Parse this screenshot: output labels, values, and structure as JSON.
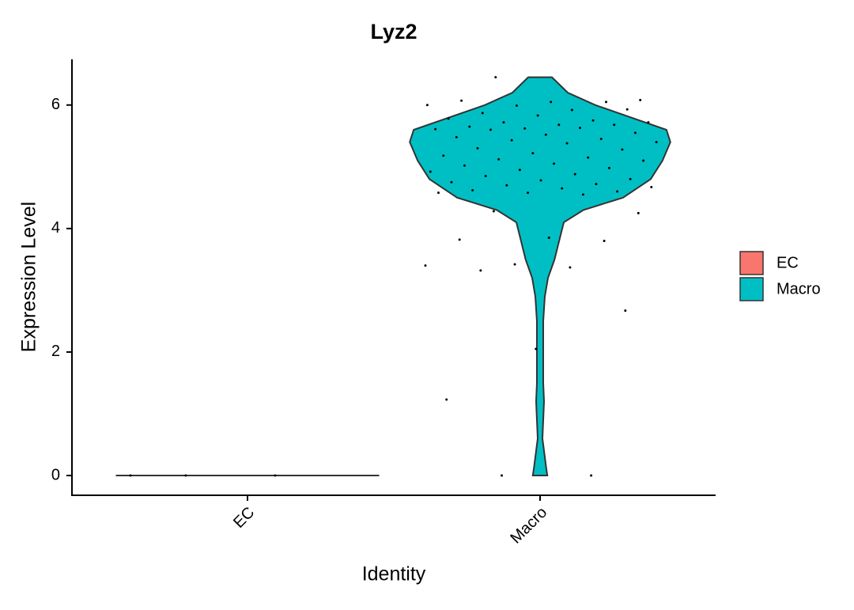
{
  "chart_data": {
    "type": "violin",
    "title": "Lyz2",
    "x_label": "Identity",
    "y_label": "Expression Level",
    "categories": [
      "EC",
      "Macro"
    ],
    "series": [
      {
        "name": "EC",
        "color": "#F8766D",
        "values": [
          0,
          0,
          0
        ],
        "density": {
          "y": [
            0
          ],
          "width": [
            1
          ]
        }
      },
      {
        "name": "Macro",
        "color": "#00BFC4",
        "values": [
          6.45,
          6.08,
          6.05,
          6.07,
          6.05,
          5.99,
          6.0,
          5.92,
          5.87,
          5.93,
          5.83,
          5.78,
          5.75,
          5.72,
          5.72,
          5.68,
          5.65,
          5.68,
          5.62,
          5.61,
          5.63,
          5.6,
          5.55,
          5.52,
          5.48,
          5.45,
          5.43,
          5.4,
          5.38,
          5.3,
          5.28,
          5.22,
          5.18,
          5.15,
          5.12,
          5.1,
          5.05,
          5.02,
          4.98,
          4.95,
          4.92,
          4.88,
          4.85,
          4.8,
          4.78,
          4.75,
          4.72,
          4.7,
          4.67,
          4.65,
          4.62,
          4.6,
          4.58,
          4.58,
          4.55,
          4.28,
          4.25,
          3.85,
          3.82,
          3.8,
          3.42,
          3.4,
          3.37,
          3.32,
          2.67,
          2.05,
          1.23,
          0,
          0
        ],
        "density": {
          "y": [
            0,
            0.1,
            0.3,
            0.6,
            0.9,
            1.2,
            1.5,
            2.0,
            2.5,
            2.9,
            3.2,
            3.5,
            3.8,
            4.1,
            4.3,
            4.5,
            4.8,
            5.1,
            5.4,
            5.6,
            5.8,
            6.0,
            6.2,
            6.45
          ],
          "width": [
            0.055,
            0.048,
            0.036,
            0.018,
            0.024,
            0.03,
            0.024,
            0.024,
            0.024,
            0.036,
            0.06,
            0.11,
            0.145,
            0.18,
            0.33,
            0.63,
            0.84,
            0.93,
            0.99,
            0.96,
            0.69,
            0.42,
            0.21,
            0.09
          ]
        }
      }
    ],
    "ylim": [
      -0.32,
      6.74
    ],
    "yticks": [
      0,
      2,
      4,
      6
    ],
    "legend": "right"
  }
}
